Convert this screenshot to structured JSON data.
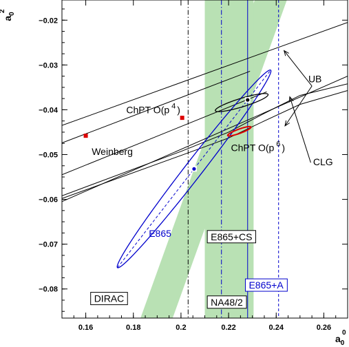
{
  "chart_data": {
    "type": "scatter",
    "xlabel": "a",
    "xlabel_sup": "0",
    "xlabel_sub": "0",
    "ylabel": "a",
    "ylabel_sup": "2",
    "ylabel_sub": "0",
    "xlim": [
      0.15,
      0.27
    ],
    "ylim": [
      -0.0865,
      -0.0155
    ],
    "x_ticks": [
      0.16,
      0.18,
      0.2,
      0.22,
      0.24,
      0.26
    ],
    "x_tick_labels": [
      "0.16",
      "0.18",
      "0.2",
      "0.22",
      "0.24",
      "0.26"
    ],
    "y_ticks": [
      -0.02,
      -0.03,
      -0.04,
      -0.05,
      -0.06,
      -0.07,
      -0.08
    ],
    "y_tick_labels": [
      "−0.02",
      "−0.03",
      "−0.04",
      "−0.05",
      "−0.06",
      "−0.07",
      "−0.08"
    ],
    "grid": false,
    "colors": {
      "band": "#b9e1b4",
      "blue": "#0000cc",
      "red": "#dd0000",
      "black": "#000000"
    },
    "bands": [
      {
        "name": "DIRAC",
        "points": [
          [
            0.183,
            -0.0865
          ],
          [
            0.1965,
            -0.0865
          ],
          [
            0.2445,
            -0.0155
          ],
          [
            0.231,
            -0.0155
          ]
        ]
      },
      {
        "name": "NA48/2",
        "points": [
          [
            0.21,
            -0.0865
          ],
          [
            0.2305,
            -0.0865
          ],
          [
            0.2305,
            -0.0155
          ],
          [
            0.21,
            -0.0155
          ]
        ]
      }
    ],
    "vertical_lines": [
      {
        "x": 0.203,
        "style": "dashdot",
        "color": "black"
      },
      {
        "x": 0.217,
        "style": "dashdot",
        "color": "blue"
      },
      {
        "x": 0.228,
        "style": "solid",
        "color": "blue"
      },
      {
        "x": 0.241,
        "style": "dashed",
        "color": "blue"
      }
    ],
    "ub_lines": [
      {
        "x": [
          0.15,
          0.27
        ],
        "y": [
          -0.0435,
          -0.0205
        ]
      },
      {
        "x": [
          0.15,
          0.27
        ],
        "y": [
          -0.0605,
          -0.0325
        ]
      }
    ],
    "chpt4_lines": [
      {
        "x": [
          0.15,
          0.229
        ],
        "y": [
          -0.0474,
          -0.0314
        ]
      },
      {
        "x": [
          0.15,
          0.236
        ],
        "y": [
          -0.0545,
          -0.036
        ]
      }
    ],
    "clg_curves": [
      {
        "x": [
          0.15,
          0.2,
          0.22,
          0.235,
          0.25,
          0.27
        ],
        "y": [
          -0.0598,
          -0.0502,
          -0.0463,
          -0.0425,
          -0.0388,
          -0.0357
        ]
      },
      {
        "x": [
          0.15,
          0.2,
          0.22,
          0.235,
          0.25,
          0.27
        ],
        "y": [
          -0.0592,
          -0.0493,
          -0.045,
          -0.0408,
          -0.0368,
          -0.0342
        ]
      }
    ],
    "ellipses": [
      {
        "name": "E865",
        "color": "blue",
        "cx": 0.2055,
        "cy": -0.0532,
        "rx": 0.0525,
        "ry": 0.0036,
        "angle_deg": 52.2,
        "axis_style": "dashed"
      },
      {
        "name": "ChPT O(p6)",
        "color": "black",
        "cx": 0.2255,
        "cy": -0.0384,
        "rx": 0.0116,
        "ry": 0.0018,
        "angle_deg": 17
      },
      {
        "name": "red",
        "color": "red",
        "cx": 0.2245,
        "cy": -0.0448,
        "rx": 0.0052,
        "ry": 0.0009,
        "angle_deg": 20
      }
    ],
    "points": [
      {
        "name": "Weinberg",
        "x": 0.16,
        "y": -0.0458,
        "color": "red"
      },
      {
        "name": "ChPT O(p4)",
        "x": 0.2005,
        "y": -0.0418,
        "color": "red"
      },
      {
        "name": "E865",
        "x": 0.2055,
        "y": -0.0532,
        "color": "blue"
      },
      {
        "name": "E865+CS",
        "x": 0.228,
        "y": -0.0378,
        "color": "black"
      }
    ],
    "annotations": [
      {
        "id": "weinberg",
        "text": "Weinberg",
        "x": 0.1625,
        "y": -0.0501,
        "boxed": false,
        "color": "black"
      },
      {
        "id": "chpt4",
        "text": "ChPT O(p",
        "sup": "4",
        "close": ")",
        "x": 0.177,
        "y": -0.0408,
        "boxed": false,
        "color": "black"
      },
      {
        "id": "chpt6",
        "text": "ChPT O(p",
        "sup": "6",
        "close": ")",
        "x": 0.221,
        "y": -0.0492,
        "boxed": false,
        "color": "black"
      },
      {
        "id": "ub",
        "text": "UB",
        "x": 0.2535,
        "y": -0.0339,
        "boxed": false,
        "color": "black"
      },
      {
        "id": "clg",
        "text": "CLG",
        "x": 0.2555,
        "y": -0.0524,
        "boxed": false,
        "color": "black"
      },
      {
        "id": "e865",
        "text": "E865",
        "x": 0.1865,
        "y": -0.0684,
        "boxed": false,
        "color": "blue"
      },
      {
        "id": "e865cs",
        "text": "E865+CS",
        "x": 0.2125,
        "y": -0.0691,
        "boxed": true,
        "color": "black"
      },
      {
        "id": "e865a",
        "text": "E865+A",
        "x": 0.2285,
        "y": -0.0799,
        "boxed": true,
        "color": "blue"
      },
      {
        "id": "dirac",
        "text": "DIRAC",
        "x": 0.1635,
        "y": -0.0829,
        "boxed": true,
        "color": "black"
      },
      {
        "id": "na48",
        "text": "NA48/2",
        "x": 0.2125,
        "y": -0.0837,
        "boxed": true,
        "color": "black"
      }
    ],
    "arrows": [
      {
        "group": "UB",
        "from": [
          0.255,
          -0.0347
        ],
        "to": [
          0.2433,
          -0.0268
        ]
      },
      {
        "group": "UB",
        "from": [
          0.255,
          -0.0347
        ],
        "to": [
          0.2437,
          -0.0436
        ]
      },
      {
        "group": "CLG",
        "from": [
          0.2545,
          -0.0518
        ],
        "to": [
          0.2457,
          -0.0371
        ]
      }
    ]
  }
}
